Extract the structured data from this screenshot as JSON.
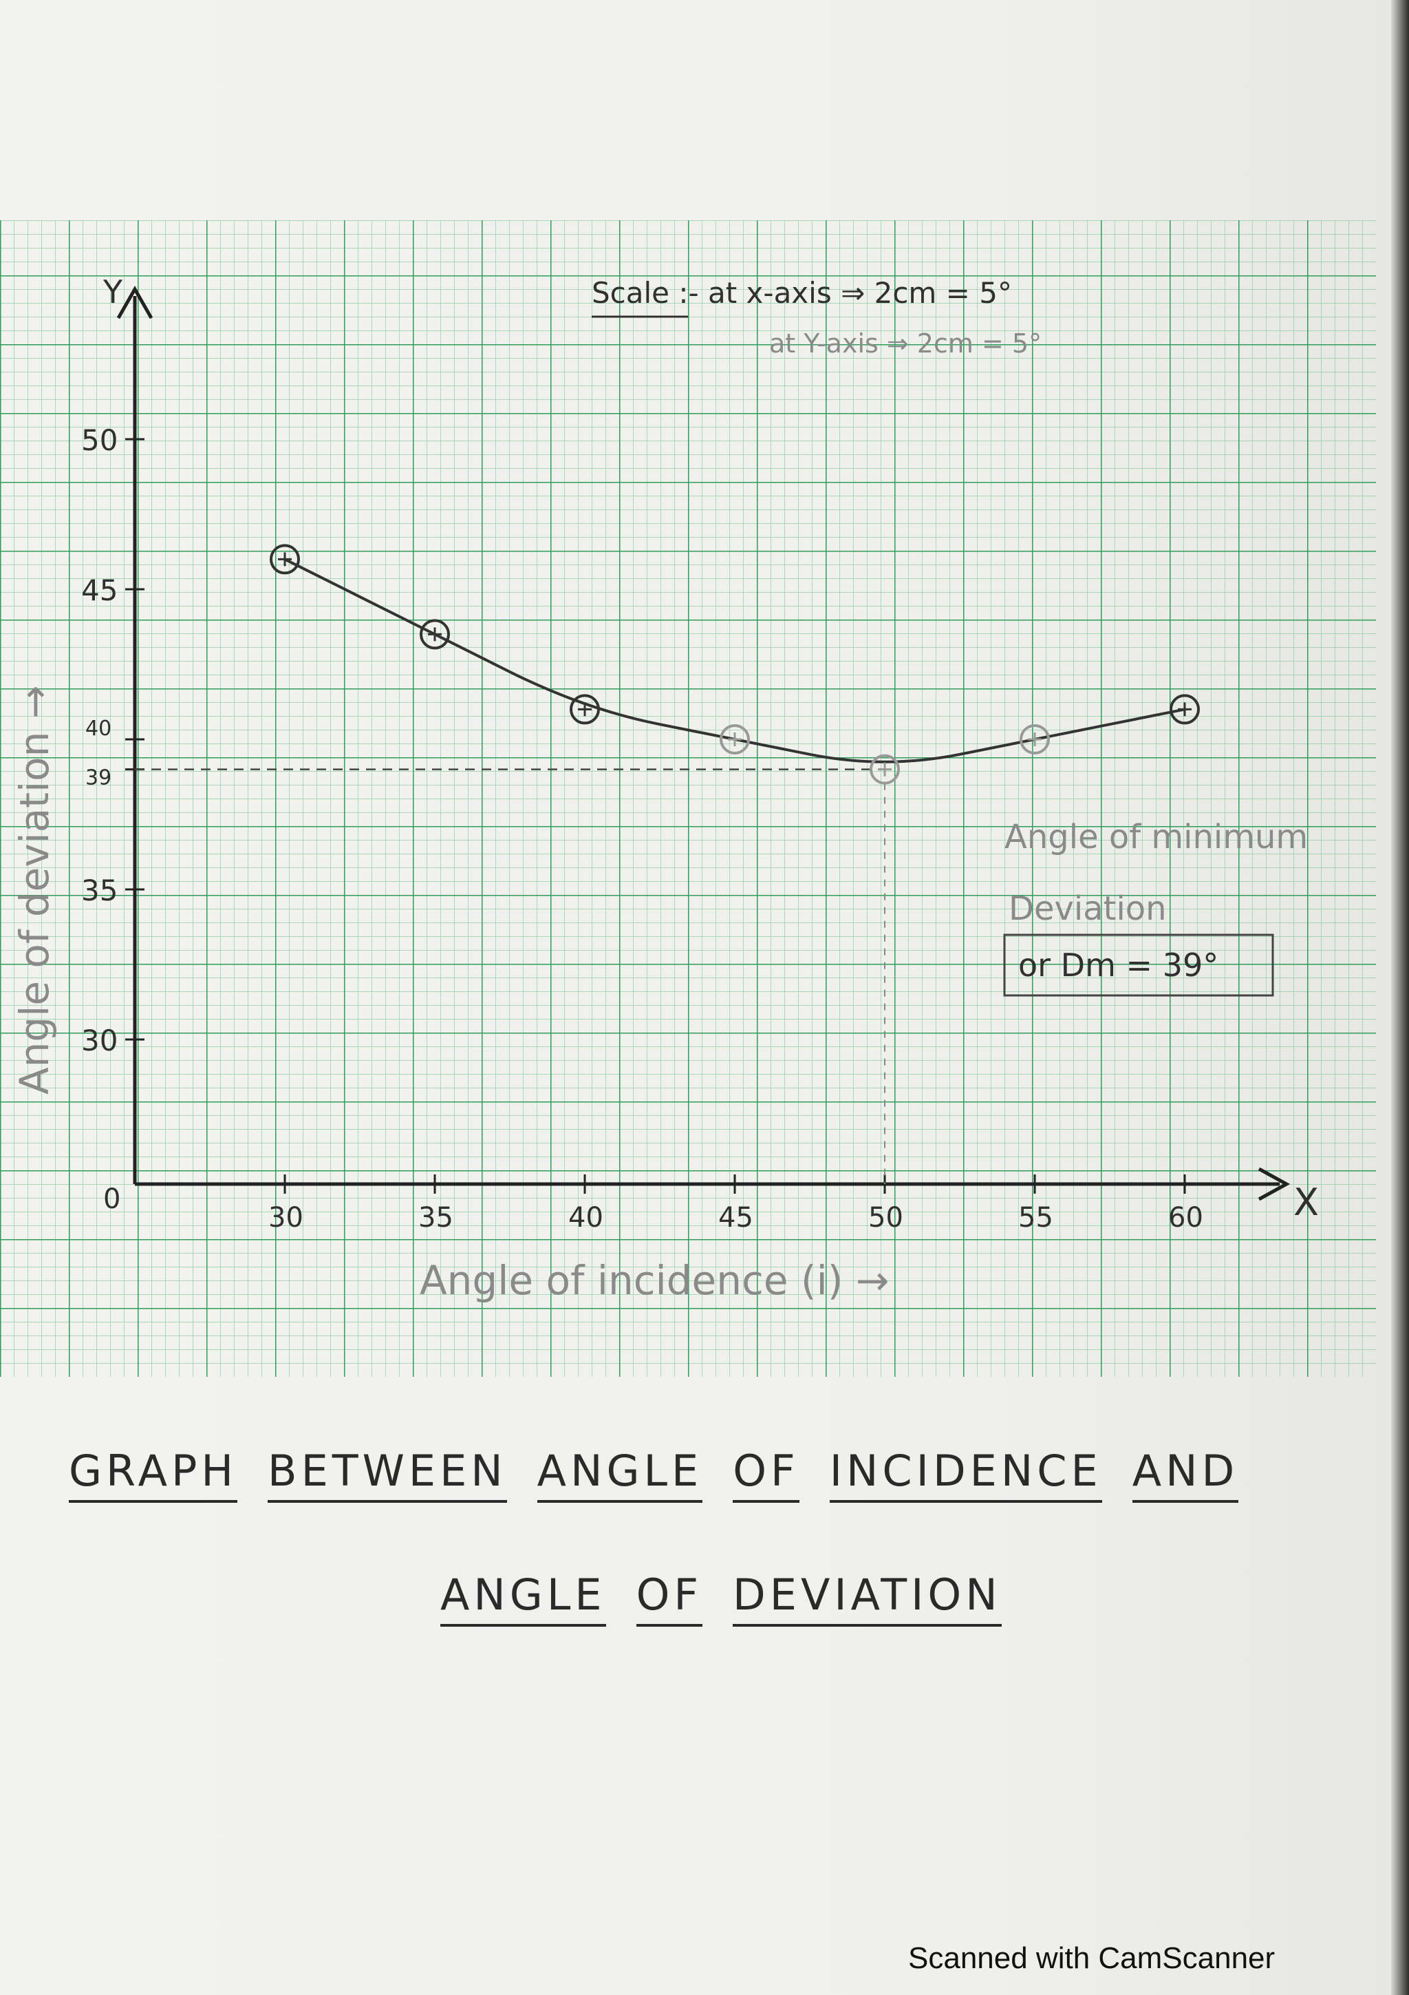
{
  "scale": {
    "line1": "Scale :- at x-axis ⇒ 2cm = 5°",
    "line2": "at Y-axis ⇒ 2cm = 5°"
  },
  "annotation": {
    "line1": "Angle of minimum",
    "line2": "Deviation",
    "value": "or Dm = 39°"
  },
  "caption": {
    "line1": [
      "GRAPH",
      "BETWEEN",
      "ANGLE",
      "OF",
      "INCIDENCE",
      "AND"
    ],
    "line2": [
      "ANGLE",
      "OF",
      "DEVIATION"
    ]
  },
  "watermark": "Scanned with CamScanner",
  "chart_data": {
    "type": "line",
    "title": "GRAPH BETWEEN ANGLE OF INCIDENCE AND ANGLE OF DEVIATION",
    "xlabel": "Angle of incidence (i) →",
    "ylabel": "Angle of deviation →",
    "x_letter": "X",
    "y_letter": "Y",
    "origin_label": "0",
    "x": [
      30,
      35,
      40,
      45,
      50,
      55,
      60
    ],
    "series": [
      {
        "values": [
          46,
          43.5,
          41,
          40,
          39,
          40,
          41
        ]
      }
    ],
    "x_ticks": [
      "30",
      "35",
      "40",
      "45",
      "50",
      "55",
      "60"
    ],
    "y_ticks": [
      {
        "value": 30,
        "label": "30"
      },
      {
        "value": 35,
        "label": "35"
      },
      {
        "value": 39,
        "label": "39"
      },
      {
        "value": 40,
        "label": "40"
      },
      {
        "value": 45,
        "label": "45"
      },
      {
        "value": 50,
        "label": "50"
      }
    ],
    "minimum_guide": {
      "y": 39
    },
    "xlim": [
      25,
      62
    ],
    "ylim": [
      25,
      53
    ],
    "grid": true
  }
}
